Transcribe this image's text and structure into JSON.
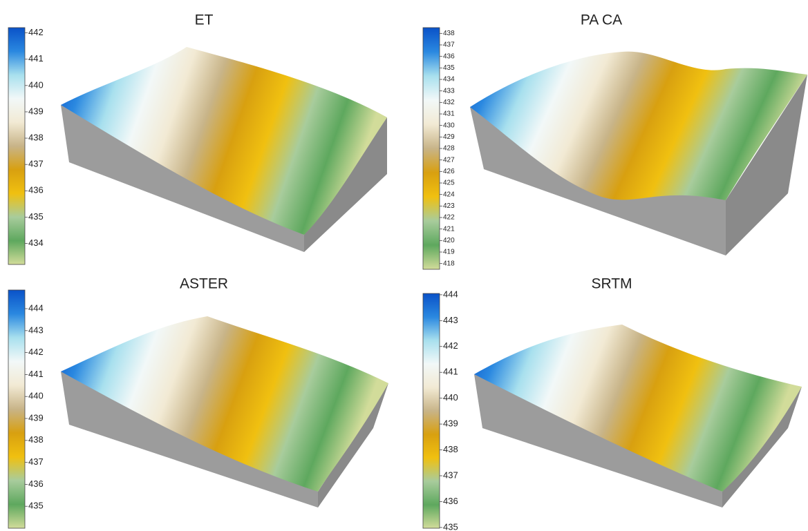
{
  "chart_data": [
    {
      "type": "surface",
      "title": "ET",
      "clim": [
        433.2,
        442.2
      ],
      "ticks": [
        434,
        435,
        436,
        437,
        438,
        439,
        440,
        441,
        442
      ],
      "colormap": [
        "#d2dc9a",
        "#5ea85e",
        "#a8cc9c",
        "#f0c010",
        "#d8a010",
        "#c8b488",
        "#f2ead4",
        "#f2f8f8",
        "#a8e0ee",
        "#2a88e0",
        "#0a52c8"
      ]
    },
    {
      "type": "surface",
      "title": "PA CA",
      "clim": [
        417.5,
        438.5
      ],
      "ticks": [
        418,
        419,
        420,
        421,
        422,
        423,
        424,
        425,
        426,
        427,
        428,
        429,
        430,
        431,
        432,
        433,
        434,
        435,
        436,
        437,
        438
      ],
      "colormap": [
        "#d2dc9a",
        "#5ea85e",
        "#a8cc9c",
        "#f0c010",
        "#d8a010",
        "#c8b488",
        "#f2ead4",
        "#f2f8f8",
        "#a8e0ee",
        "#2a88e0",
        "#0a52c8"
      ]
    },
    {
      "type": "surface",
      "title": "ASTER",
      "clim": [
        434,
        444.85
      ],
      "ticks": [
        435,
        436,
        437,
        438,
        439,
        440,
        441,
        442,
        443,
        444
      ],
      "colormap": [
        "#d2dc9a",
        "#5ea85e",
        "#a8cc9c",
        "#f0c010",
        "#d8a010",
        "#c8b488",
        "#f2ead4",
        "#f2f8f8",
        "#a8e0ee",
        "#2a88e0",
        "#0a52c8"
      ]
    },
    {
      "type": "surface",
      "title": "SRTM",
      "clim": [
        434.97,
        444.05
      ],
      "ticks": [
        435,
        436,
        437,
        438,
        439,
        440,
        441,
        442,
        443,
        444
      ],
      "colormap": [
        "#d2dc9a",
        "#5ea85e",
        "#a8cc9c",
        "#f0c010",
        "#d8a010",
        "#c8b488",
        "#f2ead4",
        "#f2f8f8",
        "#a8e0ee",
        "#2a88e0",
        "#0a52c8"
      ]
    }
  ]
}
